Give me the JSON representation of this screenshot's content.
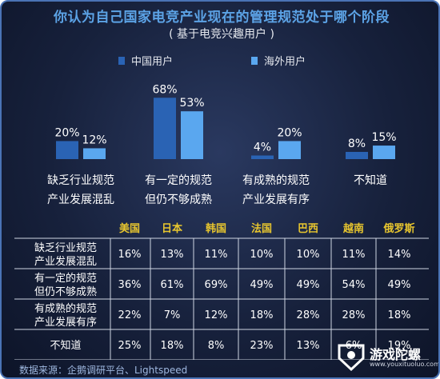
{
  "title": "你认为自己国家电竞产业现在的管理规范处于哪个阶段",
  "subtitle": "( 基于电竞兴趣用户 )",
  "source": "数据来源：企鹅调研平台、Lightspeed",
  "logo": {
    "text": "游戏陀螺",
    "url": "www.youxituoluo.com"
  },
  "colors": {
    "china": "#2a63b4",
    "overseas": "#5aa7ef",
    "title": "#5ca3e6"
  },
  "chart_data": [
    {
      "type": "bar",
      "categories": [
        [
          "缺乏行业规范",
          "产业发展混乱"
        ],
        [
          "有一定的规范",
          "但仍不够成熟"
        ],
        [
          "有成熟的规范",
          "产业发展有序"
        ],
        [
          "不知道"
        ]
      ],
      "series": [
        {
          "name": "中国用户",
          "values": [
            20,
            68,
            4,
            8
          ],
          "labels": [
            "20%",
            "68%",
            "4%",
            "8%"
          ]
        },
        {
          "name": "海外用户",
          "values": [
            12,
            53,
            20,
            15
          ],
          "labels": [
            "12%",
            "53%",
            "20%",
            "15%"
          ]
        }
      ],
      "ylim": [
        0,
        70
      ],
      "legend": "top-left",
      "grid": false
    },
    {
      "type": "table",
      "columns": [
        "美国",
        "日本",
        "韩国",
        "法国",
        "巴西",
        "越南",
        "俄罗斯"
      ],
      "rows": [
        {
          "label": [
            "缺乏行业规范",
            "产业发展混乱"
          ],
          "cells": [
            "16%",
            "13%",
            "11%",
            "10%",
            "10%",
            "11%",
            "14%"
          ]
        },
        {
          "label": [
            "有一定的规范",
            "但仍不够成熟"
          ],
          "cells": [
            "36%",
            "61%",
            "69%",
            "49%",
            "49%",
            "54%",
            "49%"
          ]
        },
        {
          "label": [
            "有成熟的规范",
            "产业发展有序"
          ],
          "cells": [
            "22%",
            "7%",
            "12%",
            "18%",
            "28%",
            "28%",
            "18%"
          ]
        },
        {
          "label": [
            "不知道"
          ],
          "cells": [
            "25%",
            "18%",
            "8%",
            "23%",
            "13%",
            "6%",
            "19%"
          ]
        }
      ]
    }
  ]
}
